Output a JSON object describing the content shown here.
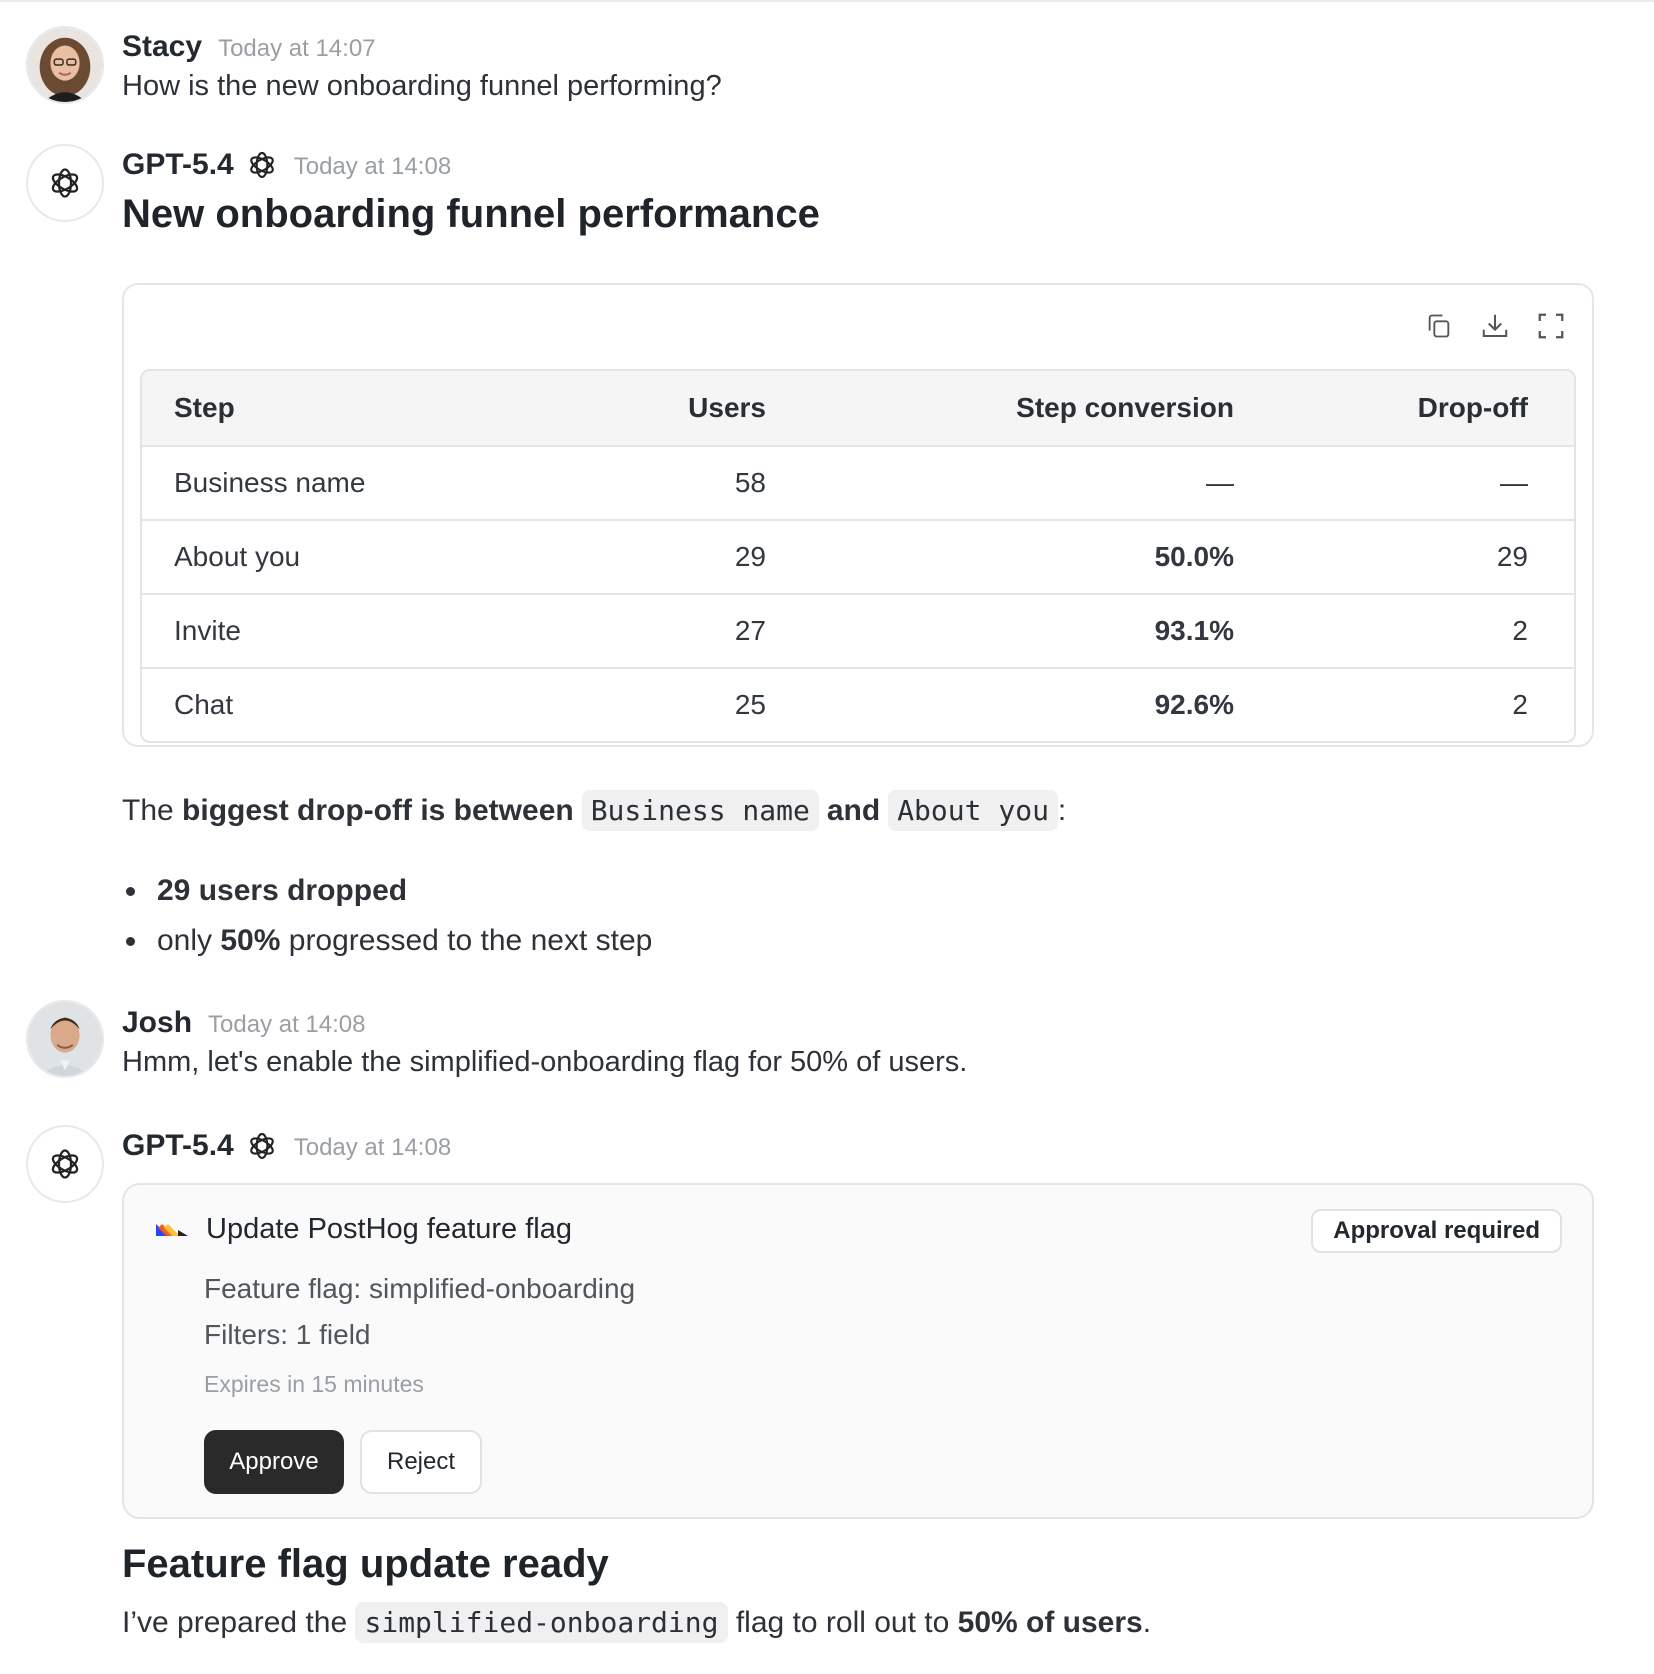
{
  "messages": {
    "stacy": {
      "name": "Stacy",
      "time": "Today at 14:07",
      "text": "How is the new onboarding funnel performing?"
    },
    "gpt1": {
      "name": "GPT-5.4",
      "time": "Today at 14:08",
      "heading": "New onboarding funnel performance",
      "table": {
        "headers": [
          "Step",
          "Users",
          "Step conversion",
          "Drop-off"
        ],
        "rows": [
          [
            "Business name",
            "58",
            "—",
            "—"
          ],
          [
            "About you",
            "29",
            "50.0%",
            "29"
          ],
          [
            "Invite",
            "27",
            "93.1%",
            "2"
          ],
          [
            "Chat",
            "25",
            "92.6%",
            "2"
          ]
        ]
      },
      "summary": {
        "t1": "The ",
        "t2": "biggest drop-off is between",
        "code1": "Business name",
        "t3": "and",
        "code2": "About you",
        "t4": ":"
      },
      "bullets": {
        "b1": "29 users dropped",
        "b2a": "only ",
        "b2b": "50%",
        "b2c": " progressed to the next step"
      }
    },
    "josh": {
      "name": "Josh",
      "time": "Today at 14:08",
      "text": "Hmm, let's enable the simplified-onboarding flag for 50% of users."
    },
    "gpt2": {
      "name": "GPT-5.4",
      "time": "Today at 14:08",
      "approval": {
        "title": "Update PostHog feature flag",
        "badge": "Approval required",
        "line1": "Feature flag: simplified-onboarding",
        "line2": "Filters: 1 field",
        "expires": "Expires in 15 minutes",
        "approve": "Approve",
        "reject": "Reject"
      },
      "heading": "Feature flag update ready",
      "final": {
        "t1": "I’ve prepared the ",
        "code": "simplified-onboarding",
        "t2": " flag to roll out to ",
        "t3": "50% of users",
        "t4": "."
      }
    }
  },
  "icons": [
    "copy-icon",
    "download-icon",
    "fullscreen-icon",
    "openai-icon",
    "posthog-logo-icon"
  ],
  "colors": {
    "approve_bg": "#2a2a2a",
    "code_bg": "#f0f0f0",
    "muted": "#9a9ea5"
  }
}
